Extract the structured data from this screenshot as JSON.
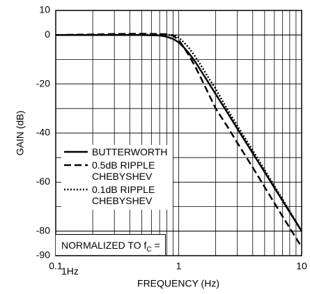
{
  "chart_data": {
    "type": "line",
    "x_label": "FREQUENCY (Hz)",
    "y_label": "GAIN (dB)",
    "x": [
      0.1,
      0.2,
      0.3,
      0.5,
      0.7,
      0.8,
      0.9,
      1,
      1.1,
      1.2,
      1.35,
      1.5,
      1.75,
      2,
      2.5,
      3,
      4,
      5,
      7,
      10
    ],
    "series": [
      {
        "name": "BUTTERWORTH",
        "color": "#000",
        "dash": "solid",
        "values": [
          0,
          0,
          0,
          0,
          -0.2,
          -0.7,
          -1.6,
          -3,
          -5,
          -7.2,
          -10.6,
          -14.2,
          -19.5,
          -24.1,
          -31.8,
          -38.2,
          -48.2,
          -55.9,
          -67.6,
          -80
        ]
      },
      {
        "name": "0.5dB RIPPLE CHEBYSHEV",
        "color": "#000",
        "dash": "dashed",
        "values": [
          0,
          0.2,
          0.4,
          0.5,
          0.4,
          0.3,
          -0.3,
          -2,
          -5,
          -8,
          -12.5,
          -17,
          -24,
          -30,
          -37.5,
          -44,
          -54,
          -62,
          -74,
          -86.5
        ]
      },
      {
        "name": "0.1dB RIPPLE CHEBYSHEV",
        "color": "#000",
        "dash": "dotted",
        "values": [
          0,
          0,
          0.1,
          0.1,
          0.1,
          0,
          0,
          -1,
          -3,
          -5,
          -8.5,
          -12,
          -17.5,
          -22,
          -30.5,
          -37,
          -47,
          -55,
          -67,
          -80
        ]
      }
    ],
    "xlim": [
      0.1,
      10
    ],
    "xticks": [
      0.1,
      1,
      10
    ],
    "log_x": true,
    "ylim": [
      -90,
      10
    ],
    "yticks": [
      10,
      0,
      -20,
      -40,
      -60,
      -80,
      -90
    ],
    "grid": true,
    "annotation": {
      "text": "NORMALIZED TO f",
      "subscript": "C",
      "suffix": " = 1Hz"
    }
  }
}
